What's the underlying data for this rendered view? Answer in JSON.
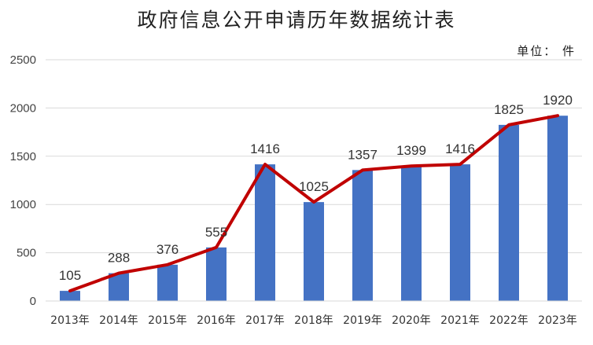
{
  "chart_data": {
    "type": "bar",
    "title": "政府信息公开申请历年数据统计表",
    "unit_label": "单位： 件",
    "categories": [
      "2013年",
      "2014年",
      "2015年",
      "2016年",
      "2017年",
      "2018年",
      "2019年",
      "2020年",
      "2021年",
      "2022年",
      "2023年"
    ],
    "values": [
      105,
      288,
      376,
      555,
      1416,
      1025,
      1357,
      1399,
      1416,
      1825,
      1920
    ],
    "overlay_line": true,
    "ylim": [
      0,
      2500
    ],
    "yticks": [
      0,
      500,
      1000,
      1500,
      2000,
      2500
    ],
    "grid": true,
    "legend": "none",
    "bar_color": "#4472C4",
    "line_color": "#C00000"
  }
}
